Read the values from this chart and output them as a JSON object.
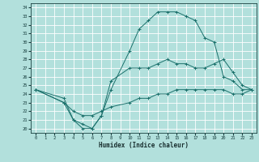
{
  "xlabel": "Humidex (Indice chaleur)",
  "bg_color": "#b2e0dc",
  "grid_color": "#ffffff",
  "line_color": "#1a706b",
  "xlim": [
    -0.5,
    23.5
  ],
  "ylim": [
    19.5,
    34.5
  ],
  "xticks": [
    0,
    1,
    2,
    3,
    4,
    5,
    6,
    7,
    8,
    9,
    10,
    11,
    12,
    13,
    14,
    15,
    16,
    17,
    18,
    19,
    20,
    21,
    22,
    23
  ],
  "yticks": [
    20,
    21,
    22,
    23,
    24,
    25,
    26,
    27,
    28,
    29,
    30,
    31,
    32,
    33,
    34
  ],
  "curve1_x": [
    0,
    3,
    4,
    5,
    6,
    7,
    8,
    10,
    11,
    12,
    13,
    14,
    15,
    16,
    17,
    18,
    19,
    20,
    21,
    22,
    23
  ],
  "curve1_y": [
    24.5,
    23.5,
    21.0,
    20.0,
    20.0,
    21.5,
    24.5,
    29.0,
    31.5,
    32.5,
    33.5,
    33.5,
    33.5,
    33.0,
    32.5,
    30.5,
    30.0,
    26.0,
    25.5,
    24.5,
    24.5
  ],
  "curve2_x": [
    0,
    3,
    4,
    5,
    6,
    7,
    8,
    10,
    11,
    12,
    13,
    14,
    15,
    16,
    17,
    18,
    19,
    20,
    21,
    22,
    23
  ],
  "curve2_y": [
    24.5,
    23.0,
    21.0,
    20.5,
    20.0,
    21.5,
    25.5,
    27.0,
    27.0,
    27.0,
    27.5,
    28.0,
    27.5,
    27.5,
    27.0,
    27.0,
    27.5,
    28.0,
    26.5,
    25.0,
    24.5
  ],
  "curve3_x": [
    0,
    3,
    4,
    5,
    6,
    7,
    8,
    10,
    11,
    12,
    13,
    14,
    15,
    16,
    17,
    18,
    19,
    20,
    21,
    22,
    23
  ],
  "curve3_y": [
    24.5,
    23.0,
    22.0,
    21.5,
    21.5,
    22.0,
    22.5,
    23.0,
    23.5,
    23.5,
    24.0,
    24.0,
    24.5,
    24.5,
    24.5,
    24.5,
    24.5,
    24.5,
    24.0,
    24.0,
    24.5
  ]
}
